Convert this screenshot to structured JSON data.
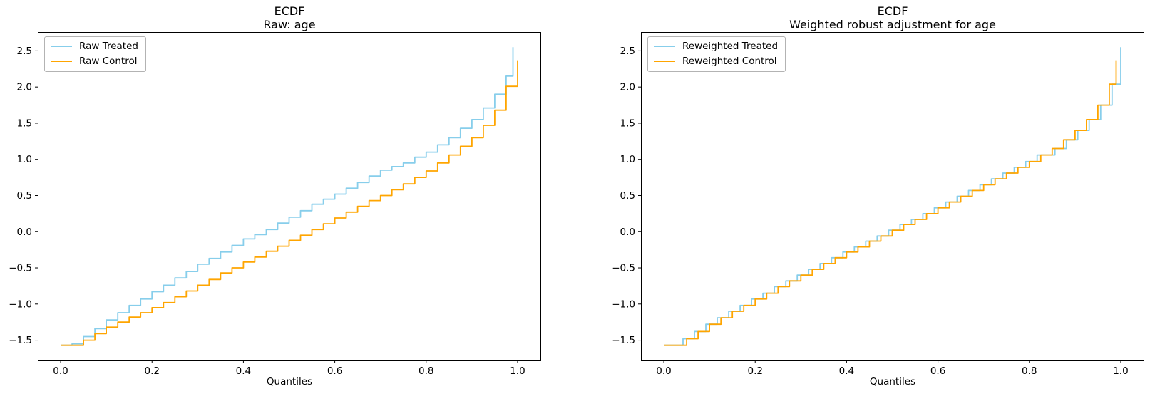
{
  "colors": {
    "treated": "#87CEEB",
    "control": "#FFA500",
    "axis": "#000000",
    "background": "#FFFFFF"
  },
  "chart_data": [
    {
      "type": "line",
      "step": true,
      "title": "ECDF",
      "subtitle": "Raw: age",
      "xlabel": "Quantiles",
      "grid": false,
      "legend_position": "upper left",
      "xlim": [
        -0.05,
        1.05
      ],
      "ylim": [
        -1.78,
        2.76
      ],
      "x_ticks": [
        "0.0",
        "0.2",
        "0.4",
        "0.6",
        "0.8",
        "1.0"
      ],
      "x_tick_values": [
        0.0,
        0.2,
        0.4,
        0.6,
        0.8,
        1.0
      ],
      "y_ticks": [
        "2.5",
        "2.0",
        "1.5",
        "1.0",
        "0.5",
        "0.0",
        "−0.5",
        "−1.0",
        "−1.5"
      ],
      "y_tick_values": [
        2.5,
        2.0,
        1.5,
        1.0,
        0.5,
        0.0,
        -0.5,
        -1.0,
        -1.5
      ],
      "series": [
        {
          "name": "Raw Treated",
          "color": "#87CEEB",
          "quantiles": [
            0,
            0.025,
            0.05,
            0.075,
            0.1,
            0.125,
            0.15,
            0.175,
            0.2,
            0.225,
            0.25,
            0.275,
            0.3,
            0.325,
            0.35,
            0.375,
            0.4,
            0.425,
            0.45,
            0.475,
            0.5,
            0.525,
            0.55,
            0.575,
            0.6,
            0.625,
            0.65,
            0.675,
            0.7,
            0.725,
            0.75,
            0.775,
            0.8,
            0.825,
            0.85,
            0.875,
            0.9,
            0.925,
            0.95,
            0.975,
            0.99
          ],
          "values": [
            -1.57,
            -1.55,
            -1.45,
            -1.34,
            -1.22,
            -1.12,
            -1.02,
            -0.93,
            -0.83,
            -0.74,
            -0.64,
            -0.55,
            -0.45,
            -0.37,
            -0.28,
            -0.19,
            -0.1,
            -0.04,
            0.03,
            0.12,
            0.2,
            0.29,
            0.38,
            0.45,
            0.52,
            0.6,
            0.68,
            0.77,
            0.85,
            0.9,
            0.95,
            1.03,
            1.1,
            1.2,
            1.3,
            1.43,
            1.55,
            1.71,
            1.9,
            2.15,
            2.55
          ]
        },
        {
          "name": "Raw Control",
          "color": "#FFA500",
          "quantiles": [
            0,
            0.025,
            0.05,
            0.075,
            0.1,
            0.125,
            0.15,
            0.175,
            0.2,
            0.225,
            0.25,
            0.275,
            0.3,
            0.325,
            0.35,
            0.375,
            0.4,
            0.425,
            0.45,
            0.475,
            0.5,
            0.525,
            0.55,
            0.575,
            0.6,
            0.625,
            0.65,
            0.675,
            0.7,
            0.725,
            0.75,
            0.775,
            0.8,
            0.825,
            0.85,
            0.875,
            0.9,
            0.925,
            0.95,
            0.975,
            1.0
          ],
          "values": [
            -1.57,
            -1.57,
            -1.5,
            -1.41,
            -1.32,
            -1.25,
            -1.18,
            -1.12,
            -1.05,
            -0.98,
            -0.9,
            -0.82,
            -0.74,
            -0.66,
            -0.57,
            -0.5,
            -0.42,
            -0.35,
            -0.27,
            -0.2,
            -0.12,
            -0.05,
            0.03,
            0.11,
            0.19,
            0.27,
            0.35,
            0.43,
            0.5,
            0.58,
            0.66,
            0.75,
            0.84,
            0.95,
            1.06,
            1.18,
            1.3,
            1.47,
            1.68,
            2.01,
            2.37
          ]
        }
      ]
    },
    {
      "type": "line",
      "step": true,
      "title": "ECDF",
      "subtitle": "Weighted robust adjustment for age",
      "xlabel": "Quantiles",
      "grid": false,
      "legend_position": "upper left",
      "xlim": [
        -0.05,
        1.05
      ],
      "ylim": [
        -1.78,
        2.76
      ],
      "x_ticks": [
        "0.0",
        "0.2",
        "0.4",
        "0.6",
        "0.8",
        "1.0"
      ],
      "x_tick_values": [
        0.0,
        0.2,
        0.4,
        0.6,
        0.8,
        1.0
      ],
      "y_ticks": [
        "2.5",
        "2.0",
        "1.5",
        "1.0",
        "0.5",
        "0.0",
        "−0.5",
        "−1.0",
        "−1.5"
      ],
      "y_tick_values": [
        2.5,
        2.0,
        1.5,
        1.0,
        0.5,
        0.0,
        -0.5,
        -1.0,
        -1.5
      ],
      "series": [
        {
          "name": "Reweighted Treated",
          "color": "#87CEEB",
          "quantiles": [
            0,
            0.017,
            0.042,
            0.067,
            0.092,
            0.117,
            0.142,
            0.167,
            0.192,
            0.217,
            0.242,
            0.267,
            0.292,
            0.317,
            0.342,
            0.367,
            0.392,
            0.417,
            0.442,
            0.467,
            0.492,
            0.517,
            0.542,
            0.567,
            0.592,
            0.617,
            0.642,
            0.667,
            0.692,
            0.717,
            0.742,
            0.767,
            0.792,
            0.817,
            0.856,
            0.881,
            0.906,
            0.931,
            0.956,
            0.981,
            1.0
          ],
          "values": [
            -1.57,
            -1.57,
            -1.48,
            -1.38,
            -1.28,
            -1.19,
            -1.1,
            -1.02,
            -0.93,
            -0.85,
            -0.76,
            -0.68,
            -0.6,
            -0.52,
            -0.44,
            -0.36,
            -0.28,
            -0.21,
            -0.13,
            -0.06,
            0.02,
            0.1,
            0.17,
            0.25,
            0.33,
            0.41,
            0.49,
            0.57,
            0.65,
            0.73,
            0.81,
            0.89,
            0.97,
            1.06,
            1.15,
            1.27,
            1.4,
            1.55,
            1.75,
            2.04,
            2.55
          ]
        },
        {
          "name": "Reweighted Control",
          "color": "#FFA500",
          "quantiles": [
            0,
            0.025,
            0.05,
            0.075,
            0.1,
            0.125,
            0.15,
            0.175,
            0.2,
            0.225,
            0.25,
            0.275,
            0.3,
            0.325,
            0.35,
            0.375,
            0.4,
            0.425,
            0.45,
            0.475,
            0.5,
            0.525,
            0.55,
            0.575,
            0.6,
            0.625,
            0.65,
            0.675,
            0.7,
            0.725,
            0.75,
            0.775,
            0.8,
            0.825,
            0.85,
            0.875,
            0.9,
            0.925,
            0.95,
            0.975,
            0.99
          ],
          "values": [
            -1.57,
            -1.57,
            -1.48,
            -1.38,
            -1.28,
            -1.19,
            -1.1,
            -1.02,
            -0.93,
            -0.85,
            -0.76,
            -0.68,
            -0.6,
            -0.52,
            -0.44,
            -0.36,
            -0.28,
            -0.21,
            -0.13,
            -0.06,
            0.02,
            0.1,
            0.17,
            0.25,
            0.33,
            0.41,
            0.49,
            0.57,
            0.65,
            0.73,
            0.81,
            0.89,
            0.97,
            1.06,
            1.15,
            1.27,
            1.4,
            1.55,
            1.75,
            2.04,
            2.37
          ]
        }
      ]
    }
  ]
}
